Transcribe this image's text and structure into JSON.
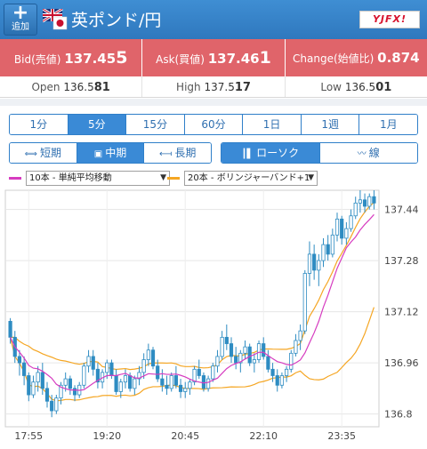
{
  "header": {
    "add_icon": "plus-icon",
    "add_label": "追加",
    "flag_icon": "uk-japan-flag-icon",
    "pair": "英ポンド/円",
    "logo_text": "YJFX!"
  },
  "quotes": {
    "bid_label": "Bid(売値)",
    "bid_main": "137.45",
    "bid_last": "5",
    "ask_label": "Ask(買値)",
    "ask_main": "137.46",
    "ask_last": "1",
    "change_label": "Change(始値比)",
    "change_value": "0.874"
  },
  "stats": {
    "open_label": "Open",
    "open_main": "136.5",
    "open_last": "81",
    "high_label": "High",
    "high_main": "137.5",
    "high_last": "17",
    "low_label": "Low",
    "low_main": "136.5",
    "low_last": "01"
  },
  "timeframes": [
    "1分",
    "5分",
    "15分",
    "60分",
    "1日",
    "1週",
    "1月"
  ],
  "timeframe_active": "5分",
  "periods": [
    {
      "label": "短期",
      "icon": "short-term-icon"
    },
    {
      "label": "中期",
      "icon": "mid-term-icon"
    },
    {
      "label": "長期",
      "icon": "long-term-icon"
    }
  ],
  "period_active": "中期",
  "chart_types": [
    {
      "label": "ローソク",
      "icon": "candlestick-icon"
    },
    {
      "label": "線",
      "icon": "line-chart-icon"
    }
  ],
  "chart_type_active": "ローソク",
  "indicators": {
    "ma_label": "10本 - 単純平均移動",
    "ma_color": "#d63cc0",
    "bb_label": "20本 - ボリンジャーバンド+1",
    "bb_color": "#f5a623"
  },
  "colors": {
    "header": "#3a86cc",
    "quote_bg": "#e0646a",
    "accent": "#3a8ad6",
    "candle": "#2e8cc2"
  },
  "chart_data": {
    "type": "candlestick",
    "x_ticks": [
      "17:55",
      "19:20",
      "20:45",
      "22:10",
      "23:35"
    ],
    "y_ticks": [
      137.44,
      137.28,
      137.12,
      136.96,
      136.8
    ],
    "ylim": [
      136.76,
      137.5
    ],
    "candles": [
      [
        137.09,
        137.1,
        137.02,
        137.04
      ],
      [
        137.04,
        137.06,
        136.96,
        136.98
      ],
      [
        136.98,
        137.0,
        136.92,
        136.96
      ],
      [
        136.96,
        136.98,
        136.89,
        136.92
      ],
      [
        136.92,
        136.93,
        136.84,
        136.86
      ],
      [
        136.86,
        136.92,
        136.85,
        136.9
      ],
      [
        136.9,
        136.95,
        136.87,
        136.93
      ],
      [
        136.93,
        136.96,
        136.86,
        136.88
      ],
      [
        136.88,
        136.9,
        136.82,
        136.84
      ],
      [
        136.84,
        136.86,
        136.79,
        136.81
      ],
      [
        136.81,
        136.86,
        136.8,
        136.85
      ],
      [
        136.85,
        136.9,
        136.83,
        136.89
      ],
      [
        136.89,
        136.93,
        136.87,
        136.91
      ],
      [
        136.91,
        136.92,
        136.86,
        136.88
      ],
      [
        136.88,
        136.89,
        136.84,
        136.86
      ],
      [
        136.86,
        136.9,
        136.85,
        136.89
      ],
      [
        136.89,
        136.96,
        136.88,
        136.95
      ],
      [
        136.95,
        137.0,
        136.93,
        136.98
      ],
      [
        136.98,
        137.0,
        136.92,
        136.94
      ],
      [
        136.94,
        136.96,
        136.88,
        136.9
      ],
      [
        136.9,
        136.94,
        136.88,
        136.93
      ],
      [
        136.93,
        136.97,
        136.91,
        136.96
      ],
      [
        136.96,
        136.97,
        136.91,
        136.92
      ],
      [
        136.92,
        136.94,
        136.86,
        136.87
      ],
      [
        136.87,
        136.91,
        136.85,
        136.9
      ],
      [
        136.9,
        136.94,
        136.88,
        136.92
      ],
      [
        136.92,
        136.93,
        136.87,
        136.88
      ],
      [
        136.88,
        136.92,
        136.86,
        136.91
      ],
      [
        136.91,
        136.95,
        136.89,
        136.93
      ],
      [
        136.93,
        136.99,
        136.91,
        136.97
      ],
      [
        136.97,
        137.02,
        136.95,
        137.0
      ],
      [
        137.0,
        137.01,
        136.94,
        136.95
      ],
      [
        136.95,
        136.97,
        136.9,
        136.91
      ],
      [
        136.91,
        136.94,
        136.87,
        136.89
      ],
      [
        136.89,
        136.92,
        136.86,
        136.88
      ],
      [
        136.88,
        136.93,
        136.87,
        136.92
      ],
      [
        136.92,
        136.95,
        136.88,
        136.89
      ],
      [
        136.89,
        136.91,
        136.85,
        136.87
      ],
      [
        136.87,
        136.9,
        136.85,
        136.88
      ],
      [
        136.88,
        136.91,
        136.86,
        136.9
      ],
      [
        136.9,
        136.95,
        136.89,
        136.94
      ],
      [
        136.94,
        136.97,
        136.91,
        136.92
      ],
      [
        136.92,
        136.93,
        136.87,
        136.88
      ],
      [
        136.88,
        136.92,
        136.87,
        136.91
      ],
      [
        136.91,
        136.96,
        136.9,
        136.95
      ],
      [
        136.95,
        137.0,
        136.93,
        136.98
      ],
      [
        136.98,
        137.06,
        136.97,
        137.04
      ],
      [
        137.04,
        137.08,
        137.0,
        137.02
      ],
      [
        137.02,
        137.04,
        136.96,
        136.98
      ],
      [
        136.98,
        137.01,
        136.94,
        136.96
      ],
      [
        136.96,
        137.0,
        136.93,
        136.99
      ],
      [
        136.99,
        137.03,
        136.97,
        137.01
      ],
      [
        137.01,
        137.02,
        136.95,
        136.96
      ],
      [
        136.96,
        136.99,
        136.93,
        136.97
      ],
      [
        136.97,
        137.03,
        136.96,
        137.02
      ],
      [
        137.02,
        137.04,
        136.97,
        136.98
      ],
      [
        136.98,
        137.0,
        136.93,
        136.94
      ],
      [
        136.94,
        136.96,
        136.9,
        136.92
      ],
      [
        136.92,
        136.94,
        136.87,
        136.89
      ],
      [
        136.89,
        136.93,
        136.88,
        136.92
      ],
      [
        136.92,
        136.95,
        136.9,
        136.94
      ],
      [
        136.94,
        137.0,
        136.93,
        136.99
      ],
      [
        136.99,
        137.05,
        136.98,
        137.03
      ],
      [
        137.03,
        137.08,
        137.0,
        137.06
      ],
      [
        137.06,
        137.25,
        137.05,
        137.24
      ],
      [
        137.24,
        137.34,
        137.2,
        137.3
      ],
      [
        137.3,
        137.33,
        137.22,
        137.25
      ],
      [
        137.25,
        137.3,
        137.2,
        137.28
      ],
      [
        137.28,
        137.35,
        137.26,
        137.33
      ],
      [
        137.33,
        137.36,
        137.28,
        137.3
      ],
      [
        137.3,
        137.38,
        137.29,
        137.36
      ],
      [
        137.36,
        137.43,
        137.34,
        137.41
      ],
      [
        137.41,
        137.42,
        137.33,
        137.35
      ],
      [
        137.35,
        137.4,
        137.33,
        137.38
      ],
      [
        137.38,
        137.44,
        137.37,
        137.42
      ],
      [
        137.42,
        137.48,
        137.41,
        137.46
      ],
      [
        137.46,
        137.5,
        137.43,
        137.47
      ],
      [
        137.47,
        137.49,
        137.43,
        137.45
      ],
      [
        137.45,
        137.49,
        137.44,
        137.48
      ],
      [
        137.48,
        137.5,
        137.44,
        137.46
      ]
    ]
  }
}
